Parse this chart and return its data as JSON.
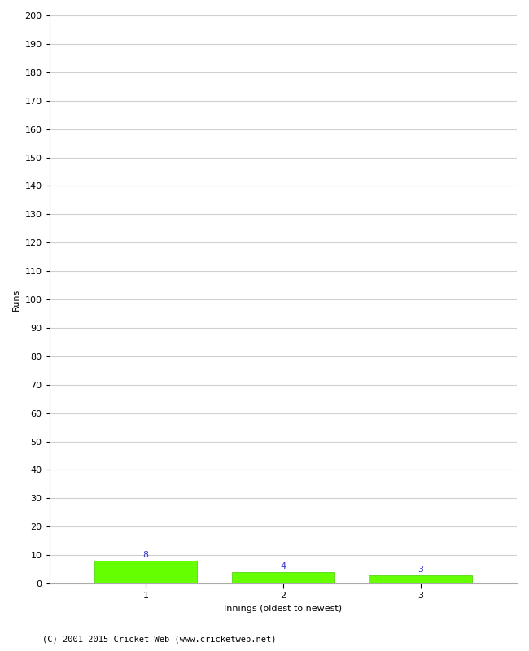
{
  "categories": [
    1,
    2,
    3
  ],
  "values": [
    8,
    4,
    3
  ],
  "bar_color": "#66ff00",
  "bar_edge_color": "#44cc00",
  "value_color": "#3333cc",
  "xlabel": "Innings (oldest to newest)",
  "ylabel": "Runs",
  "ylim": [
    0,
    200
  ],
  "yticks": [
    0,
    10,
    20,
    30,
    40,
    50,
    60,
    70,
    80,
    90,
    100,
    110,
    120,
    130,
    140,
    150,
    160,
    170,
    180,
    190,
    200
  ],
  "footnote": "(C) 2001-2015 Cricket Web (www.cricketweb.net)",
  "grid_color": "#d0d0d0",
  "background_color": "#ffffff",
  "value_fontsize": 8,
  "axis_fontsize": 8,
  "label_fontsize": 8,
  "footnote_fontsize": 7.5,
  "bar_width": 0.75,
  "xlim": [
    0.3,
    3.7
  ]
}
